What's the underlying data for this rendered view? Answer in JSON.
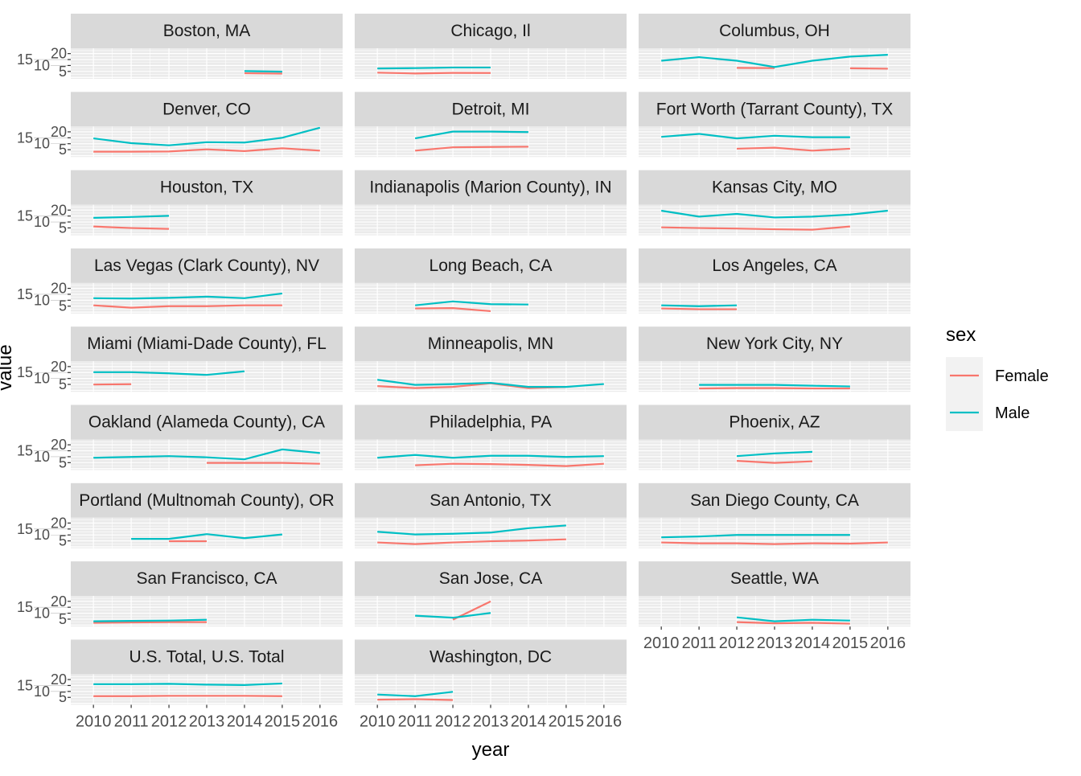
{
  "chart_data": {
    "type": "line",
    "facet": "wrap",
    "xlabel": "year",
    "ylabel": "value",
    "x_ticks": [
      2010,
      2011,
      2012,
      2013,
      2014,
      2015,
      2016
    ],
    "y_ticks": [
      5,
      10,
      15,
      20
    ],
    "xlim": [
      2009.4,
      2016.6
    ],
    "ylim": [
      -1.2,
      24.5
    ],
    "grid": true,
    "legend": {
      "title": "sex",
      "placement": "right",
      "entries": [
        {
          "name": "Female",
          "color": "#F8766D"
        },
        {
          "name": "Male",
          "color": "#00BFC4"
        }
      ]
    },
    "panels": [
      {
        "title": "Boston, MA",
        "Female": {
          "x": [
            2014,
            2015
          ],
          "y": [
            3.5,
            3.2
          ]
        },
        "Male": {
          "x": [
            2014,
            2015
          ],
          "y": [
            5.3,
            4.8
          ]
        }
      },
      {
        "title": "Chicago, Il",
        "Female": {
          "x": [
            2010,
            2011,
            2012,
            2013
          ],
          "y": [
            4,
            3.3,
            3.8,
            3.7
          ]
        },
        "Male": {
          "x": [
            2010,
            2011,
            2012,
            2013
          ],
          "y": [
            7.5,
            7.8,
            8.3,
            8.3
          ]
        }
      },
      {
        "title": "Columbus, OH",
        "Female": {
          "x": [
            2012,
            2013,
            null,
            2015,
            2016
          ],
          "y": [
            8,
            7.8,
            null,
            7.7,
            7.3
          ]
        },
        "Male": {
          "x": [
            2010,
            2011,
            2012,
            2013,
            2014,
            2015,
            2016
          ],
          "y": [
            14,
            17,
            14,
            8.7,
            14,
            17.5,
            19
          ]
        }
      },
      {
        "title": "Denver, CO",
        "Female": {
          "x": [
            2010,
            2011,
            2012,
            2013,
            2014,
            2015,
            2016
          ],
          "y": [
            3.3,
            3.3,
            3.5,
            5.3,
            3.8,
            6.2,
            4.2
          ]
        },
        "Male": {
          "x": [
            2010,
            2011,
            2012,
            2013,
            2014,
            2015,
            2016
          ],
          "y": [
            14.5,
            10.5,
            8.7,
            11.3,
            11,
            15,
            23.5
          ]
        }
      },
      {
        "title": "Detroit, MI",
        "Female": {
          "x": [
            2011,
            2012,
            2013,
            2014
          ],
          "y": [
            4.2,
            7,
            7.3,
            7.5
          ]
        },
        "Male": {
          "x": [
            2011,
            2012,
            2013,
            2014
          ],
          "y": [
            14.5,
            20.2,
            20.2,
            19.8
          ]
        }
      },
      {
        "title": "Fort Worth (Tarrant County), TX",
        "Female": {
          "x": [
            2012,
            2013,
            2014,
            2015
          ],
          "y": [
            5.8,
            6.7,
            4.2,
            5.8
          ]
        },
        "Male": {
          "x": [
            2010,
            2011,
            2012,
            2013,
            2014,
            2015
          ],
          "y": [
            15.8,
            18.3,
            14.5,
            16.7,
            15.5,
            15.5
          ]
        }
      },
      {
        "title": "Houston, TX",
        "Female": {
          "x": [
            2010,
            2011,
            2012
          ],
          "y": [
            6.2,
            4.9,
            4.2
          ]
        },
        "Male": {
          "x": [
            2010,
            2011,
            2012
          ],
          "y": [
            13.5,
            14.2,
            15.2
          ]
        }
      },
      {
        "title": "Indianapolis (Marion County), IN",
        "Female": {
          "x": [],
          "y": []
        },
        "Male": {
          "x": [],
          "y": []
        }
      },
      {
        "title": "Kansas City, MO",
        "Female": {
          "x": [
            2010,
            2011,
            2012,
            2013,
            2014,
            2015
          ],
          "y": [
            5.5,
            4.9,
            4.5,
            3.9,
            3.5,
            6.2
          ]
        },
        "Male": {
          "x": [
            2010,
            2011,
            2012,
            2013,
            2014,
            2015,
            2016
          ],
          "y": [
            19.5,
            14.5,
            16.8,
            13.8,
            14.5,
            16.2,
            19.5
          ]
        }
      },
      {
        "title": "Las Vegas (Clark County), NV",
        "Female": {
          "x": [
            2010,
            2011,
            2012,
            2013,
            2014,
            2015
          ],
          "y": [
            5.7,
            3.7,
            5,
            5,
            5.7,
            5.7
          ]
        },
        "Male": {
          "x": [
            2010,
            2011,
            2012,
            2013,
            2014,
            2015
          ],
          "y": [
            11.7,
            11.4,
            12,
            13,
            11.7,
            15.7
          ]
        }
      },
      {
        "title": "Long Beach, CA",
        "Female": {
          "x": [
            2011,
            2012,
            2013
          ],
          "y": [
            3.1,
            3.4,
            0.8
          ]
        },
        "Male": {
          "x": [
            2011,
            2012,
            2013,
            2014
          ],
          "y": [
            5.7,
            9,
            6.7,
            6.4
          ]
        }
      },
      {
        "title": "Los Angeles, CA",
        "Female": {
          "x": [
            2010,
            2011,
            2012
          ],
          "y": [
            3.1,
            2.4,
            2.4
          ]
        },
        "Male": {
          "x": [
            2010,
            2011,
            2012
          ],
          "y": [
            5.7,
            5,
            5.7
          ]
        }
      },
      {
        "title": "Miami (Miami-Dade County), FL",
        "Female": {
          "x": [
            2010,
            2011
          ],
          "y": [
            4.9,
            5.2
          ]
        },
        "Male": {
          "x": [
            2010,
            2011,
            2012,
            2013,
            2014
          ],
          "y": [
            15.3,
            15.3,
            14.3,
            13,
            16
          ]
        }
      },
      {
        "title": "Minneapolis, MN",
        "Female": {
          "x": [
            2010,
            2011,
            2012,
            2013,
            2014,
            2015
          ],
          "y": [
            3.6,
            1.9,
            2.9,
            5.9,
            1.9,
            2.9
          ]
        },
        "Male": {
          "x": [
            2010,
            2011,
            2012,
            2013,
            2014,
            2015,
            2016
          ],
          "y": [
            8.9,
            4.6,
            5.3,
            6.3,
            2.9,
            2.9,
            5.3
          ]
        }
      },
      {
        "title": "New York City, NY",
        "Female": {
          "x": [
            2011,
            2012,
            2013,
            2014,
            2015
          ],
          "y": [
            1.6,
            1.9,
            1.9,
            1.6,
            1.6
          ]
        },
        "Male": {
          "x": [
            2011,
            2012,
            2013,
            2014,
            2015
          ],
          "y": [
            4.6,
            4.6,
            4.6,
            3.9,
            3.3
          ]
        }
      },
      {
        "title": "Oakland (Alameda County), CA",
        "Female": {
          "x": [
            2013,
            2014,
            2015,
            2016
          ],
          "y": [
            4.8,
            4.8,
            4.8,
            4.1
          ]
        },
        "Male": {
          "x": [
            2010,
            2011,
            2012,
            2013,
            2014,
            2015,
            2016
          ],
          "y": [
            9.1,
            9.8,
            10.5,
            9.5,
            7.8,
            16.1,
            13.1
          ]
        }
      },
      {
        "title": "Philadelphia, PA",
        "Female": {
          "x": [
            2011,
            2012,
            2013,
            2014,
            2015,
            2016
          ],
          "y": [
            2.8,
            4.1,
            3.8,
            3.1,
            2.1,
            4.1
          ]
        },
        "Male": {
          "x": [
            2010,
            2011,
            2012,
            2013,
            2014,
            2015,
            2016
          ],
          "y": [
            9.1,
            11.5,
            9.1,
            10.8,
            10.8,
            9.8,
            10.5
          ]
        }
      },
      {
        "title": "Phoenix, AZ",
        "Female": {
          "x": [
            2012,
            2013,
            2014
          ],
          "y": [
            6.5,
            4.8,
            6.1
          ]
        },
        "Male": {
          "x": [
            2012,
            2013,
            2014
          ],
          "y": [
            10.5,
            12.8,
            14.1
          ]
        }
      },
      {
        "title": "Portland (Multnomah County), OR",
        "Female": {
          "x": [
            2012,
            2013
          ],
          "y": [
            4.7,
            4.7
          ]
        },
        "Male": {
          "x": [
            2011,
            2012,
            2013,
            2014,
            2015
          ],
          "y": [
            6.7,
            6.7,
            10.7,
            7.3,
            10.4
          ]
        }
      },
      {
        "title": "San Antonio, TX",
        "Female": {
          "x": [
            2010,
            2011,
            2012,
            2013,
            2014,
            2015
          ],
          "y": [
            3.7,
            2.3,
            3.7,
            4.7,
            5.3,
            6.3
          ]
        },
        "Male": {
          "x": [
            2010,
            2011,
            2012,
            2013,
            2014,
            2015
          ],
          "y": [
            12.7,
            10.4,
            11,
            12,
            15.7,
            18
          ]
        }
      },
      {
        "title": "San Diego County, CA",
        "Female": {
          "x": [
            2010,
            2011,
            2012,
            2013,
            2014,
            2015,
            2016
          ],
          "y": [
            3.7,
            3,
            3,
            2.3,
            3,
            2.7,
            3.7
          ]
        },
        "Male": {
          "x": [
            2010,
            2011,
            2012,
            2013,
            2014,
            2015
          ],
          "y": [
            8,
            8.7,
            10,
            10,
            10,
            10
          ]
        }
      },
      {
        "title": "San Francisco, CA",
        "Female": {
          "x": [
            2010,
            2011,
            2012,
            2013
          ],
          "y": [
            1.9,
            2.2,
            2.5,
            2.5
          ]
        },
        "Male": {
          "x": [
            2010,
            2011,
            2012,
            2013
          ],
          "y": [
            3.2,
            3.5,
            3.8,
            4.5
          ]
        }
      },
      {
        "title": "San Jose, CA",
        "Female": {
          "x": [
            2012,
            2013
          ],
          "y": [
            4.5,
            19.9
          ]
        },
        "Male": {
          "x": [
            2011,
            2012,
            2013
          ],
          "y": [
            7.9,
            6.2,
            10.2
          ]
        }
      },
      {
        "title": "Seattle, WA",
        "Female": {
          "x": [
            2012,
            2013,
            2014,
            2015
          ],
          "y": [
            2.5,
            1.5,
            1.9,
            1.2
          ]
        },
        "Male": {
          "x": [
            2012,
            2013,
            2014,
            2015
          ],
          "y": [
            6.5,
            3.2,
            4.5,
            3.8
          ]
        }
      },
      {
        "title": "U.S. Total, U.S. Total",
        "Female": {
          "x": [
            2010,
            2011,
            2012,
            2013,
            2014,
            2015
          ],
          "y": [
            6,
            6,
            6.3,
            6.3,
            6.3,
            6
          ]
        },
        "Male": {
          "x": [
            2010,
            2011,
            2012,
            2013,
            2014,
            2015
          ],
          "y": [
            16.1,
            16.1,
            16.4,
            15.7,
            15.4,
            16.7
          ]
        }
      },
      {
        "title": "Washington, DC",
        "Female": {
          "x": [
            2010,
            2011,
            2012
          ],
          "y": [
            3.1,
            3.5,
            2.8
          ]
        },
        "Male": {
          "x": [
            2010,
            2011,
            2012
          ],
          "y": [
            7.4,
            6,
            9.7
          ]
        }
      }
    ]
  }
}
